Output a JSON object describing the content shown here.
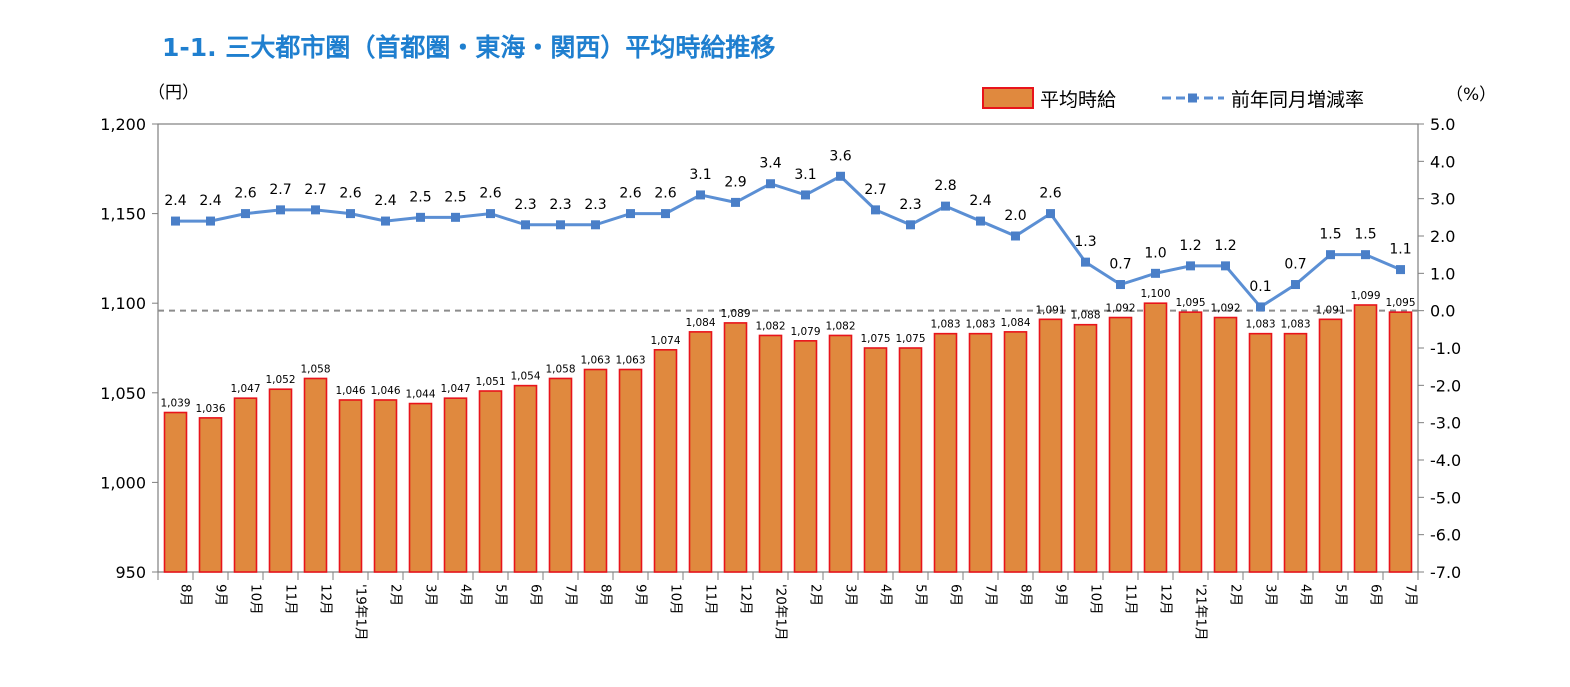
{
  "title": "1-1. 三大都市圏（首都圏・東海・関西）平均時給推移",
  "left_unit": "（円）",
  "right_unit": "（%）",
  "colors": {
    "title": "#1f7fcf",
    "bar_fill": "#e0893e",
    "bar_stroke": "#e8141b",
    "line": "#5b8fd4",
    "marker": "#4a7fc8"
  },
  "chart_data": {
    "type": "bar+line",
    "categories": [
      "8月",
      "9月",
      "10月",
      "11月",
      "12月",
      "'19年1月",
      "2月",
      "3月",
      "4月",
      "5月",
      "6月",
      "7月",
      "8月",
      "9月",
      "10月",
      "11月",
      "12月",
      "'20年1月",
      "2月",
      "3月",
      "4月",
      "5月",
      "6月",
      "7月",
      "8月",
      "9月",
      "10月",
      "11月",
      "12月",
      "'21年1月",
      "2月",
      "3月",
      "4月",
      "5月",
      "6月",
      "7月"
    ],
    "bar_series": {
      "name": "平均時給",
      "values": [
        1039,
        1036,
        1047,
        1052,
        1058,
        1046,
        1046,
        1044,
        1047,
        1051,
        1054,
        1058,
        1063,
        1063,
        1074,
        1084,
        1089,
        1082,
        1079,
        1082,
        1075,
        1075,
        1083,
        1083,
        1084,
        1091,
        1088,
        1092,
        1100,
        1095,
        1092,
        1083,
        1083,
        1091,
        1099,
        1095
      ],
      "labels": [
        "1,039",
        "1,036",
        "1,047",
        "1,052",
        "1,058",
        "1,046",
        "1,046",
        "1,044",
        "1,047",
        "1,051",
        "1,054",
        "1,058",
        "1,063",
        "1,063",
        "1,074",
        "1,084",
        "1,089",
        "1,082",
        "1,079",
        "1,082",
        "1,075",
        "1,075",
        "1,083",
        "1,083",
        "1,084",
        "1,091",
        "1,088",
        "1,092",
        "1,100",
        "1,095",
        "1,092",
        "1,083",
        "1,083",
        "1,091",
        "1,099",
        "1,095"
      ]
    },
    "line_series": {
      "name": "前年同月増減率",
      "values": [
        2.4,
        2.4,
        2.6,
        2.7,
        2.7,
        2.6,
        2.4,
        2.5,
        2.5,
        2.6,
        2.3,
        2.3,
        2.3,
        2.6,
        2.6,
        3.1,
        2.9,
        3.4,
        3.1,
        3.6,
        2.7,
        2.3,
        2.8,
        2.4,
        2.0,
        2.6,
        1.3,
        0.7,
        1.0,
        1.2,
        1.2,
        0.1,
        0.7,
        1.5,
        1.5,
        1.1
      ],
      "labels": [
        "2.4",
        "2.4",
        "2.6",
        "2.7",
        "2.7",
        "2.6",
        "2.4",
        "2.5",
        "2.5",
        "2.6",
        "2.3",
        "2.3",
        "2.3",
        "2.6",
        "2.6",
        "3.1",
        "2.9",
        "3.4",
        "3.1",
        "3.6",
        "2.7",
        "2.3",
        "2.8",
        "2.4",
        "2.0",
        "2.6",
        "1.3",
        "0.7",
        "1.0",
        "1.2",
        "1.2",
        "0.1",
        "0.7",
        "1.5",
        "1.5",
        "1.1"
      ]
    },
    "left_axis": {
      "range": [
        950,
        1200
      ],
      "ticks": [
        1200,
        1150,
        1100,
        1050,
        1000,
        950
      ],
      "tick_labels": [
        "1,200",
        "1,150",
        "1,100",
        "1,050",
        "1,000",
        "950"
      ]
    },
    "right_axis": {
      "range": [
        -7.0,
        5.0
      ],
      "ticks": [
        5,
        4,
        3,
        2,
        1,
        0,
        -1,
        -2,
        -3,
        -4,
        -5,
        -6,
        -7
      ],
      "tick_labels": [
        "5.0",
        "4.0",
        "3.0",
        "2.0",
        "1.0",
        "0.0",
        "-1.0",
        "-2.0",
        "-3.0",
        "-4.0",
        "-5.0",
        "-6.0",
        "-7.0"
      ]
    },
    "zero_reference_line": true,
    "legend": {
      "position": "top-right",
      "entries": [
        "平均時給",
        "前年同月増減率"
      ]
    }
  }
}
